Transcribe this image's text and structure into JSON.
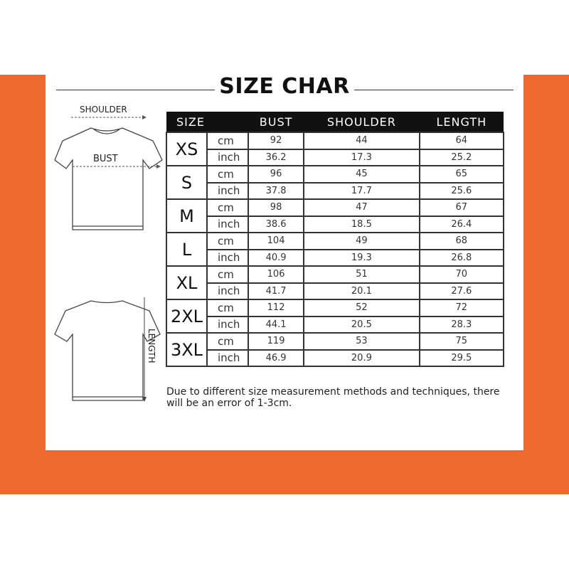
{
  "title": "SIZE CHAR",
  "diagram": {
    "shoulder_label": "SHOULDER",
    "bust_label": "BUST",
    "length_label": "LENGTH"
  },
  "colors": {
    "background_band": "#ee6a2c",
    "header_bg": "#111111"
  },
  "table": {
    "headers": [
      "SIZE",
      "",
      "BUST",
      "SHOULDER",
      "LENGTH"
    ],
    "rows": [
      {
        "size": "XS",
        "cm": [
          "92",
          "44",
          "64"
        ],
        "inch": [
          "36.2",
          "17.3",
          "25.2"
        ]
      },
      {
        "size": "S",
        "cm": [
          "96",
          "45",
          "65"
        ],
        "inch": [
          "37.8",
          "17.7",
          "25.6"
        ]
      },
      {
        "size": "M",
        "cm": [
          "98",
          "47",
          "67"
        ],
        "inch": [
          "38.6",
          "18.5",
          "26.4"
        ]
      },
      {
        "size": "L",
        "cm": [
          "104",
          "49",
          "68"
        ],
        "inch": [
          "40.9",
          "19.3",
          "26.8"
        ]
      },
      {
        "size": "XL",
        "cm": [
          "106",
          "51",
          "70"
        ],
        "inch": [
          "41.7",
          "20.1",
          "27.6"
        ]
      },
      {
        "size": "2XL",
        "cm": [
          "112",
          "52",
          "72"
        ],
        "inch": [
          "44.1",
          "20.5",
          "28.3"
        ]
      },
      {
        "size": "3XL",
        "cm": [
          "119",
          "53",
          "75"
        ],
        "inch": [
          "46.9",
          "20.9",
          "29.5"
        ]
      }
    ],
    "unit_cm": "cm",
    "unit_inch": "inch"
  },
  "note": "Due to different size measurement methods and techniques, there will be an error of 1-3cm."
}
